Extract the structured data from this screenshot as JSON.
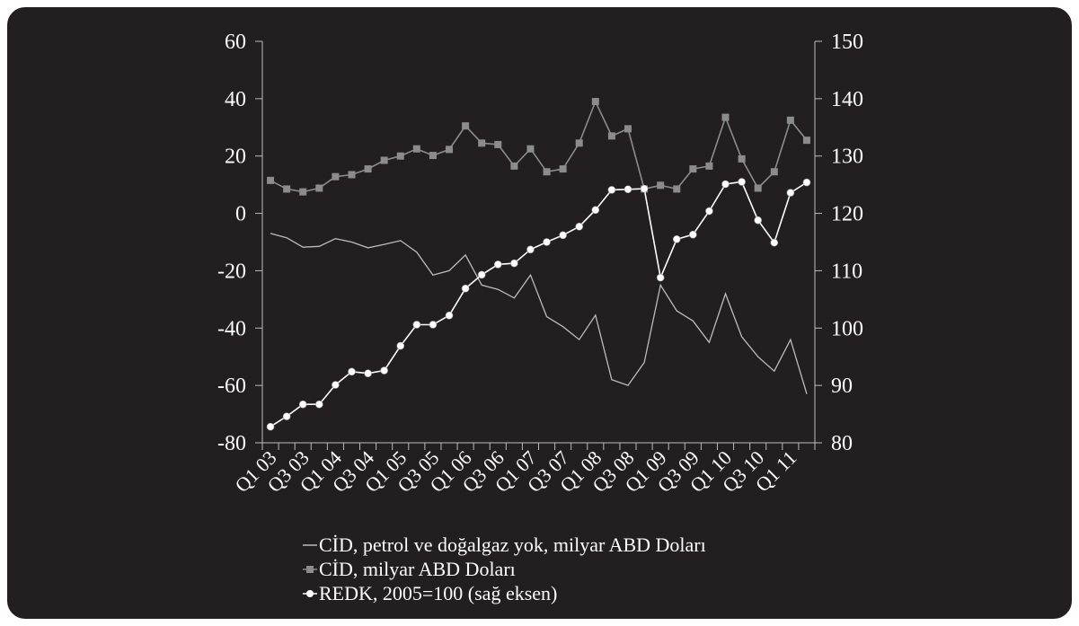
{
  "chart_data": {
    "type": "line",
    "categories": [
      "Q1 03",
      "Q2 03",
      "Q3 03",
      "Q4 03",
      "Q1 04",
      "Q2 04",
      "Q3 04",
      "Q4 04",
      "Q1 05",
      "Q2 05",
      "Q3 05",
      "Q4 05",
      "Q1 06",
      "Q2 06",
      "Q3 06",
      "Q4 06",
      "Q1 07",
      "Q2 07",
      "Q3 07",
      "Q4 07",
      "Q1 08",
      "Q2 08",
      "Q3 08",
      "Q4 08",
      "Q1 09",
      "Q2 09",
      "Q3 09",
      "Q4 09",
      "Q1 10",
      "Q2 10",
      "Q3 10",
      "Q4 10",
      "Q1 11",
      "Q2 11"
    ],
    "category_tick_labels": [
      "Q1 03",
      "Q3 03",
      "Q1 04",
      "Q3 04",
      "Q1 05",
      "Q3 05",
      "Q1 06",
      "Q3 06",
      "Q1 07",
      "Q3 07",
      "Q1 08",
      "Q3 08",
      "Q1 09",
      "Q3 09",
      "Q1 10",
      "Q3 10",
      "Q1 11"
    ],
    "y_left": {
      "min": -80,
      "max": 60,
      "step": 20,
      "ticks": [
        "-80",
        "-60",
        "-40",
        "-20",
        "0",
        "20",
        "40",
        "60"
      ]
    },
    "y_right": {
      "min": 80,
      "max": 150,
      "step": 10,
      "ticks": [
        "80",
        "90",
        "100",
        "110",
        "120",
        "130",
        "140",
        "150"
      ]
    },
    "series": [
      {
        "name": "CİD, petrol ve doğalgaz yok, milyar ABD Doları",
        "axis": "left",
        "marker": "none",
        "color": "#bcbcbc",
        "values": [
          -7,
          -8.5,
          -11.8,
          -11.5,
          -8.8,
          -10,
          -12,
          -10.8,
          -9.5,
          -13.5,
          -21.5,
          -20,
          -14.5,
          -25,
          -26.5,
          -29.5,
          -21.5,
          -36,
          -39.5,
          -44,
          -35.5,
          -58,
          -60,
          -52,
          -25,
          -34,
          -37.5,
          -45,
          -28,
          -43,
          -50,
          -55,
          -44,
          -63
        ]
      },
      {
        "name": "CİD, milyar ABD Doları",
        "axis": "left",
        "marker": "square",
        "color": "#8c8c8c",
        "values": [
          11.5,
          8.5,
          7.5,
          8.8,
          12.8,
          13.5,
          15.5,
          18.5,
          20,
          22.5,
          20.2,
          22.3,
          30.5,
          24.5,
          24,
          16.5,
          22.5,
          14.5,
          15.5,
          24.5,
          39,
          27,
          29.5,
          8.5,
          9.8,
          8.5,
          15.5,
          16.5,
          33.5,
          19,
          8.8,
          14.5,
          32.5,
          25.5
        ]
      },
      {
        "name": "REDK, 2005=100 (sağ eksen)",
        "axis": "right",
        "marker": "circle",
        "color": "#ffffff",
        "values": [
          82.8,
          84.6,
          86.7,
          86.7,
          90.1,
          92.4,
          92.1,
          92.6,
          96.9,
          100.6,
          100.6,
          102.2,
          106.9,
          109.3,
          111.1,
          111.3,
          113.7,
          115,
          116.2,
          117.7,
          120.6,
          124.1,
          124.2,
          124.3,
          108.8,
          115.5,
          116.3,
          120.4,
          125.1,
          125.5,
          118.8,
          114.9,
          123.6,
          125.4
        ]
      }
    ]
  }
}
